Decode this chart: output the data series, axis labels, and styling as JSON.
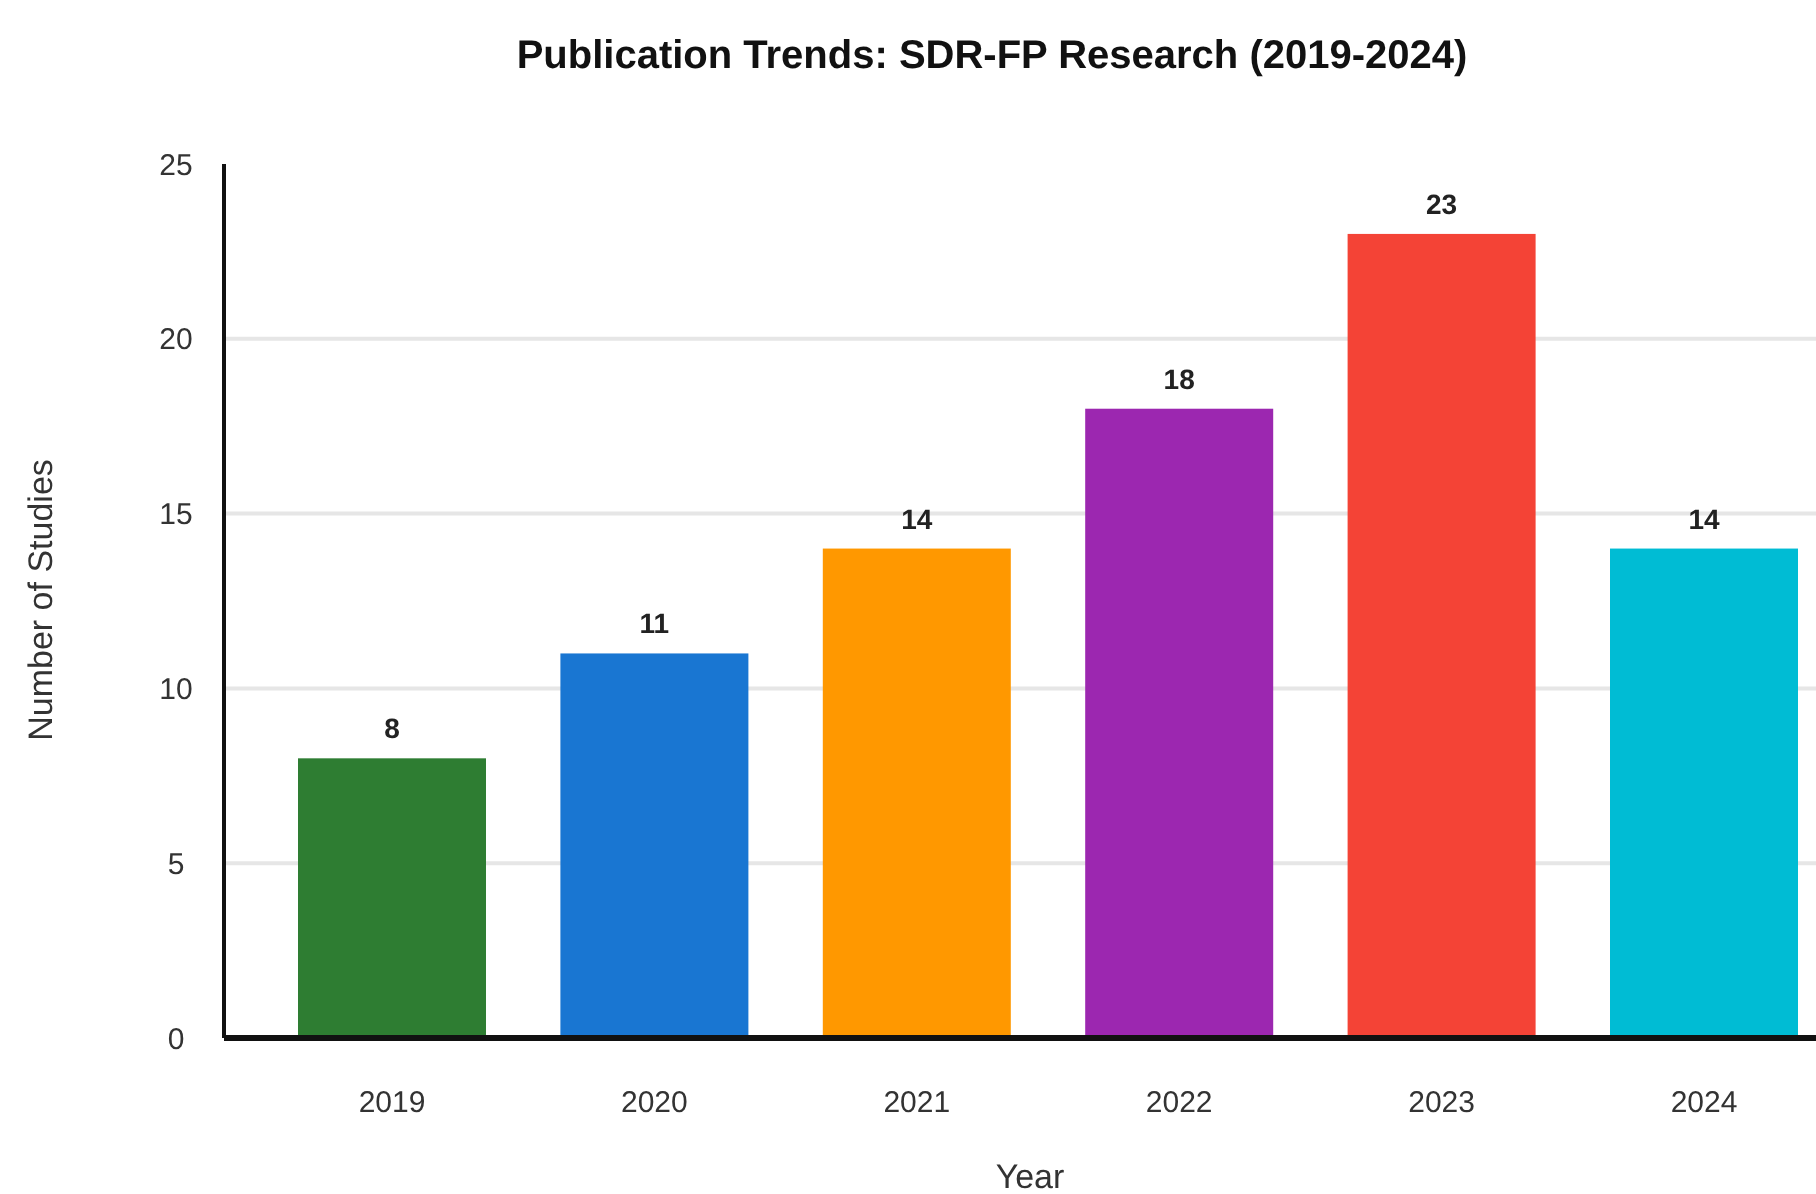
{
  "chart_data": {
    "type": "bar",
    "title": "Publication Trends: SDR-FP Research (2019-2024)",
    "xlabel": "Year",
    "ylabel": "Number of Studies",
    "categories": [
      "2019",
      "2020",
      "2021",
      "2022",
      "2023",
      "2024"
    ],
    "values": [
      8,
      11,
      14,
      18,
      23,
      14
    ],
    "colors": [
      "#2e7d32",
      "#1976d2",
      "#ff9800",
      "#9c27b0",
      "#f44336",
      "#00bcd4"
    ],
    "ylim": [
      0,
      25
    ],
    "yticks": [
      0,
      5,
      10,
      15,
      20,
      25
    ],
    "grid": "y",
    "data_labels": true
  }
}
